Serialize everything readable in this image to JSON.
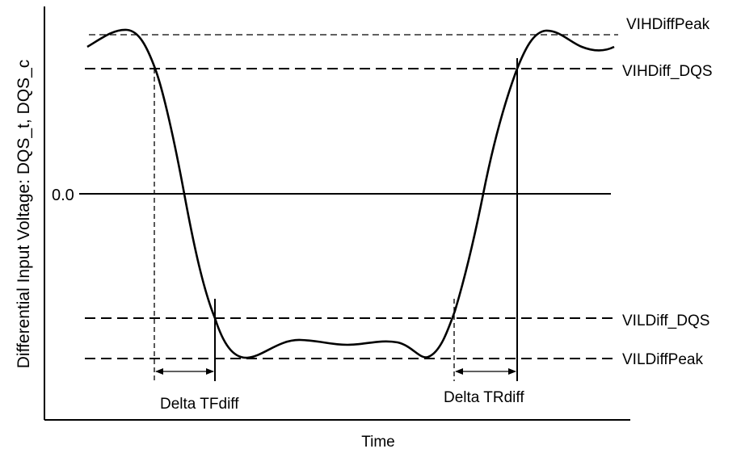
{
  "diagram": {
    "y_axis_label": "Differential Input Voltage: DQS_t, DQS_c",
    "x_axis_label": "Time",
    "zero_label": "0.0",
    "levels": {
      "vih_peak": "VIHDiffPeak",
      "vih_dqs": "VIHDiff_DQS",
      "vil_dqs": "VILDiff_DQS",
      "vil_peak": "VILDiffPeak"
    },
    "intervals": {
      "fall": "Delta TFdiff",
      "rise": "Delta TRdiff"
    },
    "colors": {
      "ink": "#000000",
      "background": "#ffffff"
    }
  }
}
